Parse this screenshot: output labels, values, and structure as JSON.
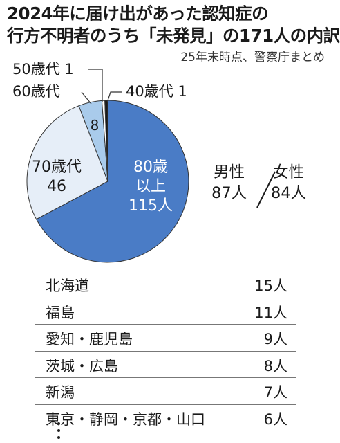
{
  "title": {
    "line1": "2024年に届け出があった認知症の",
    "line2": "行方不明者のうち「未発見」の171人の内訳"
  },
  "subtitle": "25年末時点、警察庁まとめ",
  "chart_data": {
    "type": "pie",
    "slices": [
      {
        "label": "80歳以上",
        "value": 115,
        "unit": "人",
        "color": "#4a7cc6"
      },
      {
        "label": "70歳代",
        "value": 46,
        "color": "#e6eef8"
      },
      {
        "label": "60歳代",
        "value": 8,
        "color": "#a9cbeb"
      },
      {
        "label": "50歳代",
        "value": 1,
        "color": "#ffffff"
      },
      {
        "label": "40歳代",
        "value": 1,
        "color": "#1a1a1a"
      }
    ],
    "slice_text": {
      "s80_line1": "80歳",
      "s80_line2": "以上",
      "s80_value": "115人",
      "s70_line1": "70歳代",
      "s70_value": "46",
      "s60_value": "8",
      "c60": "60歳代",
      "c50": "50歳代 1",
      "c40": "40歳代 1"
    }
  },
  "gender": {
    "male_label": "男性",
    "male_value": "87人",
    "female_label": "女性",
    "female_value": "84人"
  },
  "prefectures": [
    {
      "name": "北海道",
      "count": "15人"
    },
    {
      "name": "福島",
      "count": "11人"
    },
    {
      "name": "愛知・鹿児島",
      "count": "9人"
    },
    {
      "name": "茨城・広島",
      "count": "8人"
    },
    {
      "name": "新潟",
      "count": "7人"
    },
    {
      "name": "東京・静岡・京都・山口",
      "count": "6人"
    }
  ],
  "colors": {
    "accent": "#4a7cc6",
    "light": "#e6eef8",
    "mid": "#a9cbeb"
  }
}
